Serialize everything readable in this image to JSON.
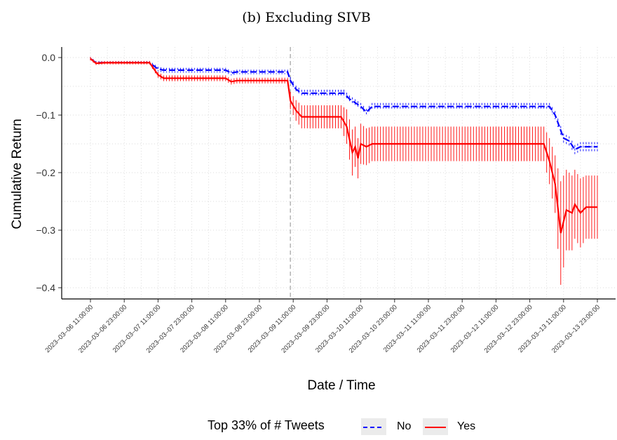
{
  "chart_data": {
    "type": "line",
    "title": "(b) Excluding SIVB",
    "xlabel": "Date / Time",
    "ylabel": "Cumulative Return",
    "x_tick_labels": [
      "2023–03–06 11:00:00",
      "2023–03–06 23:00:00",
      "2023–03–07 11:00:00",
      "2023–03–07 23:00:00",
      "2023–03–08 11:00:00",
      "2023–03–08 23:00:00",
      "2023–03–09 11:00:00",
      "2023–03–09 23:00:00",
      "2023–03–10 11:00:00",
      "2023–03–10 23:00:00",
      "2023–03–11 11:00:00",
      "2023–03–11 23:00:00",
      "2023–03–12 11:00:00",
      "2023–03–12 23:00:00",
      "2023–03–13 11:00:00",
      "2023–03–13 23:00:00"
    ],
    "y_ticks": [
      0.0,
      -0.1,
      -0.2,
      -0.3,
      -0.4
    ],
    "y_tick_labels": [
      "0.0",
      "−0.1",
      "−0.2",
      "−0.3",
      "−0.4"
    ],
    "ylim": [
      -0.42,
      0.005
    ],
    "grid": true,
    "legend_placement": "bottom",
    "legend_title": "Top 33% of # Tweets",
    "vline_x": "2023-03-09 10:00:00",
    "series": [
      {
        "name": "No",
        "color": "#0000ff",
        "linestyle": "dashed",
        "points": [
          [
            "2023-03-06 11:00",
            -0.002,
            0.003
          ],
          [
            "2023-03-06 13:00",
            -0.009,
            0.003
          ],
          [
            "2023-03-06 16:00",
            -0.009,
            0.003
          ],
          [
            "2023-03-07 08:00",
            -0.009,
            0.003
          ],
          [
            "2023-03-07 11:00",
            -0.02,
            0.004
          ],
          [
            "2023-03-07 13:00",
            -0.022,
            0.004
          ],
          [
            "2023-03-08 11:00",
            -0.022,
            0.004
          ],
          [
            "2023-03-08 13:00",
            -0.027,
            0.004
          ],
          [
            "2023-03-08 15:00",
            -0.025,
            0.004
          ],
          [
            "2023-03-09 09:00",
            -0.025,
            0.004
          ],
          [
            "2023-03-09 10:00",
            -0.04,
            0.006
          ],
          [
            "2023-03-09 12:00",
            -0.055,
            0.006
          ],
          [
            "2023-03-09 14:00",
            -0.062,
            0.006
          ],
          [
            "2023-03-10 05:00",
            -0.062,
            0.006
          ],
          [
            "2023-03-10 07:00",
            -0.072,
            0.006
          ],
          [
            "2023-03-10 11:00",
            -0.085,
            0.006
          ],
          [
            "2023-03-10 13:00",
            -0.095,
            0.006
          ],
          [
            "2023-03-10 15:00",
            -0.085,
            0.006
          ],
          [
            "2023-03-13 06:00",
            -0.085,
            0.006
          ],
          [
            "2023-03-13 08:00",
            -0.1,
            0.007
          ],
          [
            "2023-03-13 11:00",
            -0.14,
            0.008
          ],
          [
            "2023-03-13 13:00",
            -0.145,
            0.008
          ],
          [
            "2023-03-13 15:00",
            -0.16,
            0.008
          ],
          [
            "2023-03-13 17:00",
            -0.155,
            0.008
          ],
          [
            "2023-03-13 23:00",
            -0.155,
            0.008
          ]
        ]
      },
      {
        "name": "Yes",
        "color": "#ff0000",
        "linestyle": "solid",
        "points": [
          [
            "2023-03-06 11:00",
            -0.002,
            0.003
          ],
          [
            "2023-03-06 13:00",
            -0.01,
            0.003
          ],
          [
            "2023-03-06 16:00",
            -0.009,
            0.003
          ],
          [
            "2023-03-07 08:00",
            -0.009,
            0.003
          ],
          [
            "2023-03-07 11:00",
            -0.03,
            0.005
          ],
          [
            "2023-03-07 13:00",
            -0.036,
            0.005
          ],
          [
            "2023-03-08 11:00",
            -0.036,
            0.005
          ],
          [
            "2023-03-08 13:00",
            -0.042,
            0.005
          ],
          [
            "2023-03-08 15:00",
            -0.04,
            0.005
          ],
          [
            "2023-03-09 09:00",
            -0.04,
            0.005
          ],
          [
            "2023-03-09 10:00",
            -0.075,
            0.015
          ],
          [
            "2023-03-09 12:00",
            -0.092,
            0.018
          ],
          [
            "2023-03-09 14:00",
            -0.103,
            0.02
          ],
          [
            "2023-03-10 04:00",
            -0.103,
            0.02
          ],
          [
            "2023-03-10 06:00",
            -0.12,
            0.03
          ],
          [
            "2023-03-10 08:00",
            -0.165,
            0.04
          ],
          [
            "2023-03-10 09:00",
            -0.155,
            0.035
          ],
          [
            "2023-03-10 10:00",
            -0.175,
            0.035
          ],
          [
            "2023-03-10 11:00",
            -0.15,
            0.035
          ],
          [
            "2023-03-10 13:00",
            -0.155,
            0.032
          ],
          [
            "2023-03-10 15:00",
            -0.15,
            0.03
          ],
          [
            "2023-03-13 04:00",
            -0.15,
            0.03
          ],
          [
            "2023-03-13 06:00",
            -0.18,
            0.04
          ],
          [
            "2023-03-13 08:00",
            -0.22,
            0.05
          ],
          [
            "2023-03-13 10:00",
            -0.305,
            0.09
          ],
          [
            "2023-03-13 12:00",
            -0.265,
            0.07
          ],
          [
            "2023-03-13 14:00",
            -0.27,
            0.065
          ],
          [
            "2023-03-13 15:00",
            -0.255,
            0.06
          ],
          [
            "2023-03-13 17:00",
            -0.27,
            0.06
          ],
          [
            "2023-03-13 19:00",
            -0.26,
            0.055
          ],
          [
            "2023-03-13 23:00",
            -0.26,
            0.055
          ]
        ]
      }
    ]
  }
}
